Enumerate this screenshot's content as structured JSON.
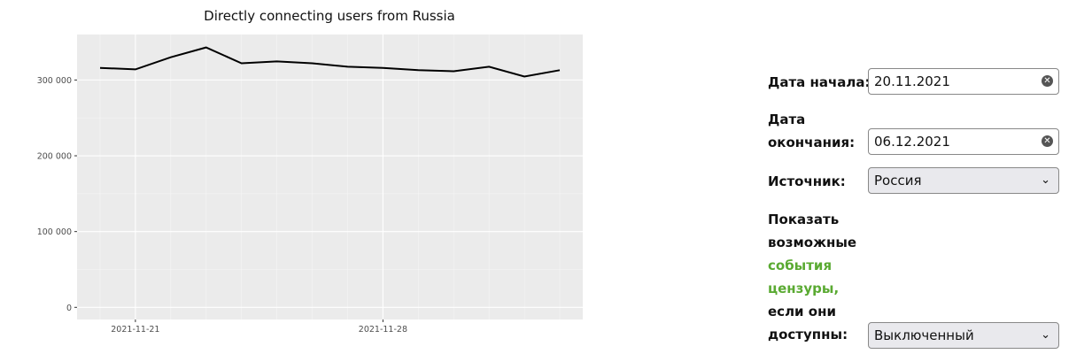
{
  "chart_data": {
    "type": "line",
    "title": "Directly connecting users from Russia",
    "x": [
      "2021-11-20",
      "2021-11-21",
      "2021-11-22",
      "2021-11-23",
      "2021-11-24",
      "2021-11-25",
      "2021-11-26",
      "2021-11-27",
      "2021-11-28",
      "2021-11-29",
      "2021-11-30",
      "2021-12-01",
      "2021-12-02",
      "2021-12-03"
    ],
    "series": [
      {
        "name": "Russia",
        "color": "#000000",
        "values": [
          316000,
          314000,
          330000,
          343000,
          322000,
          324500,
          322000,
          317500,
          316000,
          313000,
          311500,
          317500,
          304500,
          313000
        ]
      }
    ],
    "xlim": [
      "2021-11-19T08:24:00Z",
      "2021-12-03T15:36:00Z"
    ],
    "xticks": [
      "2021-11-21",
      "2021-11-28"
    ],
    "ylim": [
      -16000,
      360000
    ],
    "yticks": [
      {
        "value": 0,
        "label": "0"
      },
      {
        "value": 100000,
        "label": "100 000"
      },
      {
        "value": 200000,
        "label": "200 000"
      },
      {
        "value": 300000,
        "label": "300 000"
      }
    ],
    "grid": true
  },
  "form": {
    "start_label": "Дата начала:",
    "start_value": "20.11.2021",
    "end_label_1": "Дата",
    "end_label_2": "окончания:",
    "end_value": "06.12.2021",
    "source_label": "Источник:",
    "source_value": "Россия",
    "events_label_1": "Показать",
    "events_label_2": "возможные",
    "events_link_1": "события",
    "events_link_2": "цензуры,",
    "events_label_3": "если они",
    "events_label_4": "доступны:",
    "events_value": "Выключенный"
  }
}
